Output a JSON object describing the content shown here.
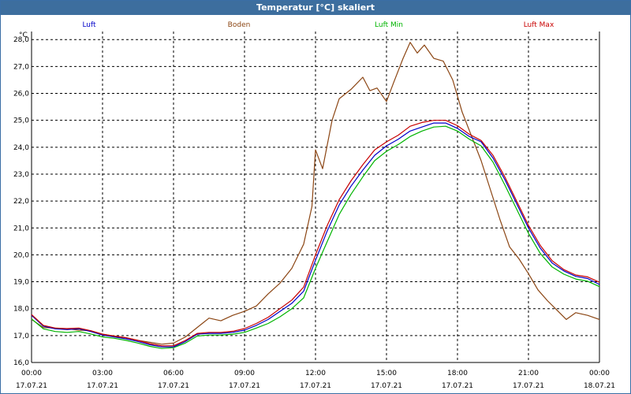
{
  "window": {
    "title": "Temperatur [°C] skaliert"
  },
  "colors": {
    "luft": "#0000c8",
    "boden": "#8b4513",
    "luft_min": "#00b400",
    "luft_max": "#c80000",
    "titlebar": "#3d6e9e"
  },
  "chart_data": {
    "type": "line",
    "title": "Temperatur [°C] skaliert",
    "ylabel": "°C",
    "xlabel": "",
    "ylim": [
      16.0,
      28.3
    ],
    "xlim_hours": [
      0,
      24
    ],
    "grid": true,
    "y_ticks": [
      "16,0",
      "17,0",
      "18,0",
      "19,0",
      "20,0",
      "21,0",
      "22,0",
      "23,0",
      "24,0",
      "25,0",
      "26,0",
      "27,0",
      "28,0"
    ],
    "y_tick_values": [
      16,
      17,
      18,
      19,
      20,
      21,
      22,
      23,
      24,
      25,
      26,
      27,
      28
    ],
    "x_ticks": [
      {
        "time": "00:00",
        "date": "17.07.21"
      },
      {
        "time": "03:00",
        "date": "17.07.21"
      },
      {
        "time": "06:00",
        "date": "17.07.21"
      },
      {
        "time": "09:00",
        "date": "17.07.21"
      },
      {
        "time": "12:00",
        "date": "17.07.21"
      },
      {
        "time": "15:00",
        "date": "17.07.21"
      },
      {
        "time": "18:00",
        "date": "17.07.21"
      },
      {
        "time": "21:00",
        "date": "17.07.21"
      },
      {
        "time": "00:00",
        "date": "18.07.21"
      }
    ],
    "x_tick_hours": [
      0,
      3,
      6,
      9,
      12,
      15,
      18,
      21,
      24
    ],
    "series": [
      {
        "name": "Luft",
        "x": [
          0,
          0.5,
          1,
          1.5,
          2,
          2.5,
          3,
          3.5,
          4,
          4.5,
          5,
          5.5,
          6,
          6.5,
          7,
          7.5,
          8,
          8.5,
          9,
          9.5,
          10,
          10.5,
          11,
          11.5,
          12,
          12.5,
          13,
          13.5,
          14,
          14.5,
          15,
          15.5,
          16,
          16.5,
          17,
          17.5,
          18,
          18.5,
          19,
          19.5,
          20,
          20.5,
          21,
          21.5,
          22,
          22.5,
          23,
          23.5,
          24
        ],
        "values": [
          17.75,
          17.35,
          17.25,
          17.22,
          17.25,
          17.15,
          17.02,
          16.95,
          16.88,
          16.78,
          16.66,
          16.58,
          16.58,
          16.78,
          17.05,
          17.08,
          17.08,
          17.12,
          17.2,
          17.38,
          17.6,
          17.9,
          18.2,
          18.65,
          19.8,
          20.9,
          21.85,
          22.55,
          23.15,
          23.7,
          24.05,
          24.3,
          24.6,
          24.75,
          24.9,
          24.9,
          24.7,
          24.4,
          24.2,
          23.6,
          22.8,
          21.9,
          21.0,
          20.25,
          19.7,
          19.4,
          19.2,
          19.12,
          18.9
        ]
      },
      {
        "name": "Boden",
        "x": [
          0,
          0.5,
          1,
          1.5,
          2,
          2.5,
          3,
          3.5,
          4,
          4.5,
          5,
          5.5,
          6,
          6.5,
          7,
          7.5,
          8,
          8.5,
          9,
          9.5,
          10,
          10.5,
          11,
          11.5,
          11.85,
          12,
          12.3,
          12.7,
          13,
          13.5,
          14,
          14.3,
          14.6,
          15,
          15.3,
          15.7,
          16,
          16.3,
          16.6,
          17,
          17.4,
          17.8,
          18.2,
          18.6,
          19,
          19.4,
          19.8,
          20.2,
          20.6,
          21,
          21.4,
          21.8,
          22.2,
          22.6,
          23,
          23.5,
          24
        ],
        "values": [
          17.6,
          17.3,
          17.28,
          17.25,
          17.2,
          17.18,
          17.05,
          16.98,
          16.92,
          16.82,
          16.75,
          16.68,
          16.72,
          16.95,
          17.3,
          17.65,
          17.55,
          17.75,
          17.9,
          18.1,
          18.55,
          18.95,
          19.5,
          20.4,
          21.8,
          23.9,
          23.2,
          25.0,
          25.8,
          26.15,
          26.6,
          26.1,
          26.2,
          25.7,
          26.4,
          27.3,
          27.9,
          27.5,
          27.8,
          27.3,
          27.2,
          26.5,
          25.3,
          24.4,
          23.5,
          22.4,
          21.3,
          20.3,
          19.85,
          19.3,
          18.7,
          18.3,
          17.95,
          17.6,
          17.85,
          17.75,
          17.6
        ]
      },
      {
        "name": "Luft Min",
        "x": [
          0,
          0.5,
          1,
          1.5,
          2,
          2.5,
          3,
          3.5,
          4,
          4.5,
          5,
          5.5,
          6,
          6.5,
          7,
          7.5,
          8,
          8.5,
          9,
          9.5,
          10,
          10.5,
          11,
          11.5,
          12,
          12.5,
          13,
          13.5,
          14,
          14.5,
          15,
          15.5,
          16,
          16.5,
          17,
          17.5,
          18,
          18.5,
          19,
          19.5,
          20,
          20.5,
          21,
          21.5,
          22,
          22.5,
          23,
          23.5,
          24
        ],
        "values": [
          17.62,
          17.25,
          17.15,
          17.12,
          17.15,
          17.06,
          16.95,
          16.9,
          16.82,
          16.72,
          16.6,
          16.52,
          16.55,
          16.72,
          16.98,
          17.02,
          17.02,
          17.05,
          17.12,
          17.28,
          17.45,
          17.7,
          18.0,
          18.4,
          19.5,
          20.5,
          21.5,
          22.25,
          22.9,
          23.5,
          23.85,
          24.1,
          24.4,
          24.6,
          24.75,
          24.78,
          24.6,
          24.3,
          24.05,
          23.45,
          22.6,
          21.7,
          20.8,
          20.05,
          19.55,
          19.28,
          19.1,
          19.02,
          18.82
        ]
      },
      {
        "name": "Luft Max",
        "x": [
          0,
          0.5,
          1,
          1.5,
          2,
          2.5,
          3,
          3.5,
          4,
          4.5,
          5,
          5.5,
          6,
          6.5,
          7,
          7.5,
          8,
          8.5,
          9,
          9.5,
          10,
          10.5,
          11,
          11.5,
          12,
          12.5,
          13,
          13.5,
          14,
          14.5,
          15,
          15.5,
          16,
          16.5,
          17,
          17.5,
          18,
          18.5,
          19,
          19.5,
          20,
          20.5,
          21,
          21.5,
          22,
          22.5,
          23,
          23.5,
          24
        ],
        "values": [
          17.78,
          17.38,
          17.28,
          17.26,
          17.28,
          17.18,
          17.05,
          16.98,
          16.92,
          16.82,
          16.7,
          16.62,
          16.62,
          16.82,
          17.08,
          17.12,
          17.12,
          17.16,
          17.26,
          17.45,
          17.68,
          18.0,
          18.32,
          18.8,
          20.0,
          21.1,
          22.05,
          22.75,
          23.35,
          23.9,
          24.2,
          24.45,
          24.78,
          24.92,
          25.0,
          25.0,
          24.8,
          24.48,
          24.25,
          23.7,
          22.9,
          22.0,
          21.1,
          20.35,
          19.78,
          19.45,
          19.25,
          19.18,
          18.98
        ]
      }
    ]
  }
}
